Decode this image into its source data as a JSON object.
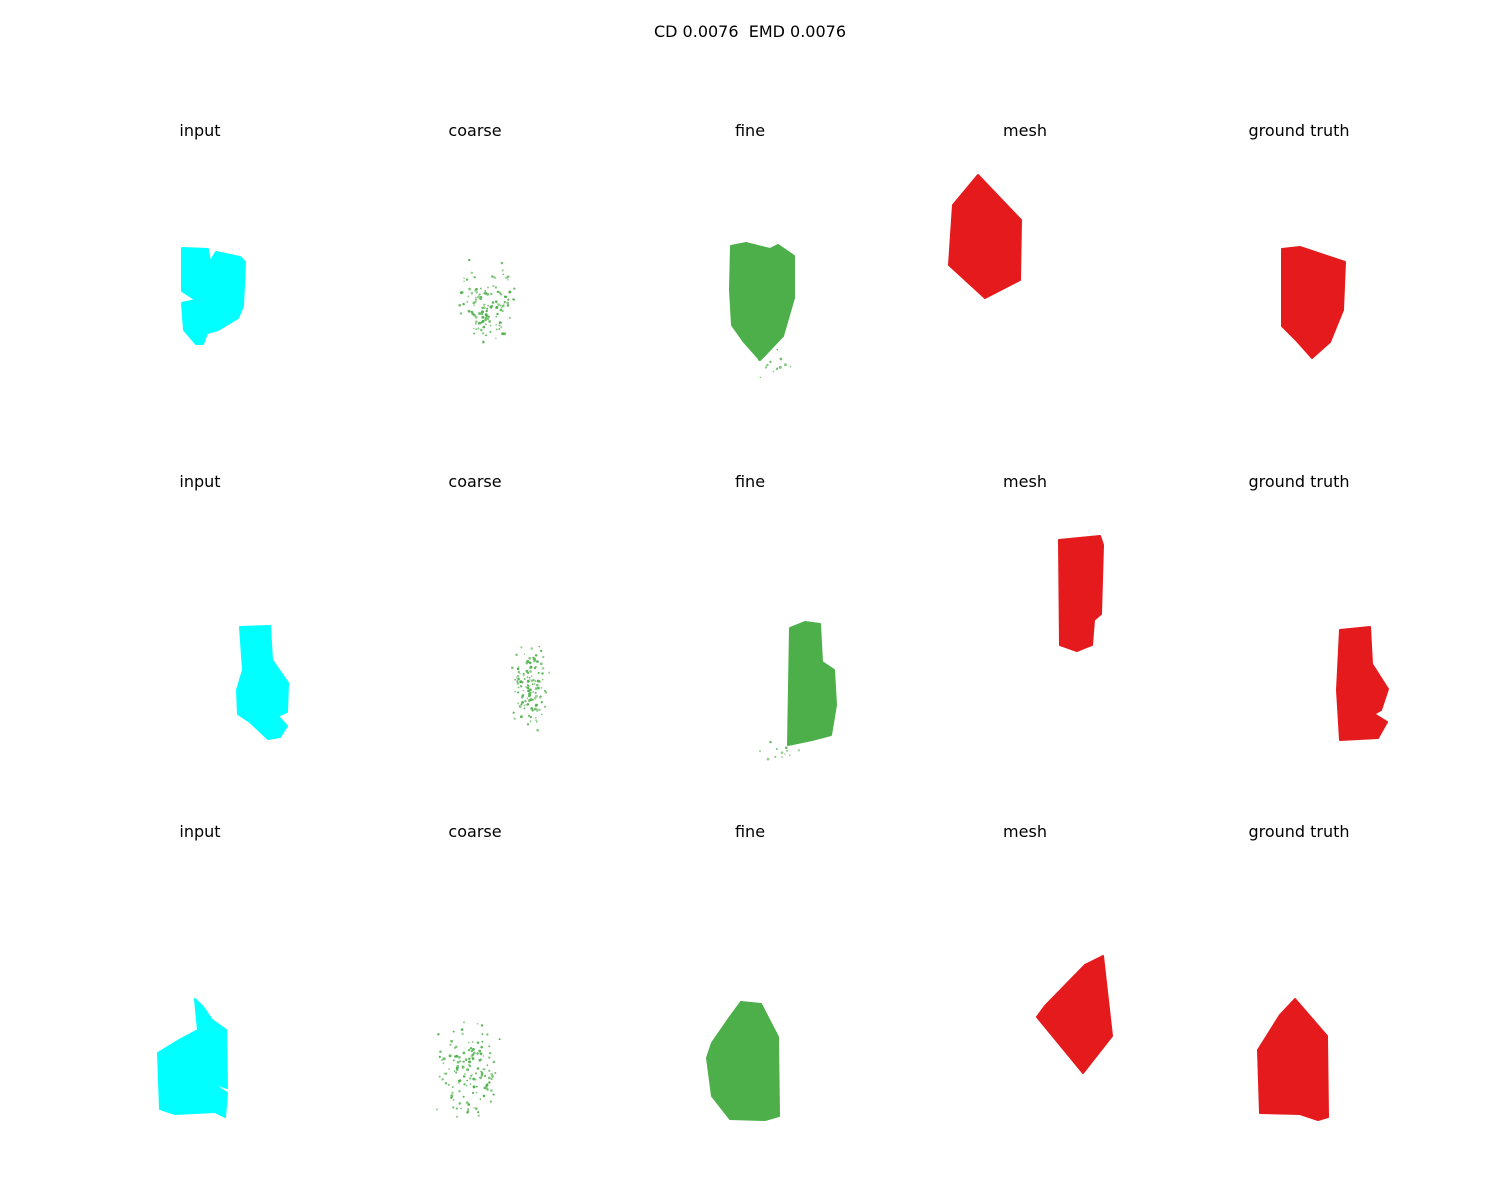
{
  "figure": {
    "title": "CD 0.0076  EMD 0.0076",
    "column_titles": [
      "input",
      "coarse",
      "fine",
      "mesh",
      "ground truth"
    ],
    "colors": {
      "input": "#00ffff",
      "coarse": "#4daf4a",
      "fine": "#4daf4a",
      "mesh": "#e41a1c",
      "ground_truth": "#e41a1c"
    },
    "rows": [
      {
        "panels": [
          {
            "kind": "input",
            "label": "input"
          },
          {
            "kind": "coarse",
            "label": "coarse"
          },
          {
            "kind": "fine",
            "label": "fine"
          },
          {
            "kind": "mesh",
            "label": "mesh"
          },
          {
            "kind": "ground_truth",
            "label": "ground truth"
          }
        ]
      },
      {
        "panels": [
          {
            "kind": "input",
            "label": "input"
          },
          {
            "kind": "coarse",
            "label": "coarse"
          },
          {
            "kind": "fine",
            "label": "fine"
          },
          {
            "kind": "mesh",
            "label": "mesh"
          },
          {
            "kind": "ground_truth",
            "label": "ground truth"
          }
        ]
      },
      {
        "panels": [
          {
            "kind": "input",
            "label": "input"
          },
          {
            "kind": "coarse",
            "label": "coarse"
          },
          {
            "kind": "fine",
            "label": "fine"
          },
          {
            "kind": "mesh",
            "label": "mesh"
          },
          {
            "kind": "ground_truth",
            "label": "ground truth"
          }
        ]
      }
    ]
  }
}
